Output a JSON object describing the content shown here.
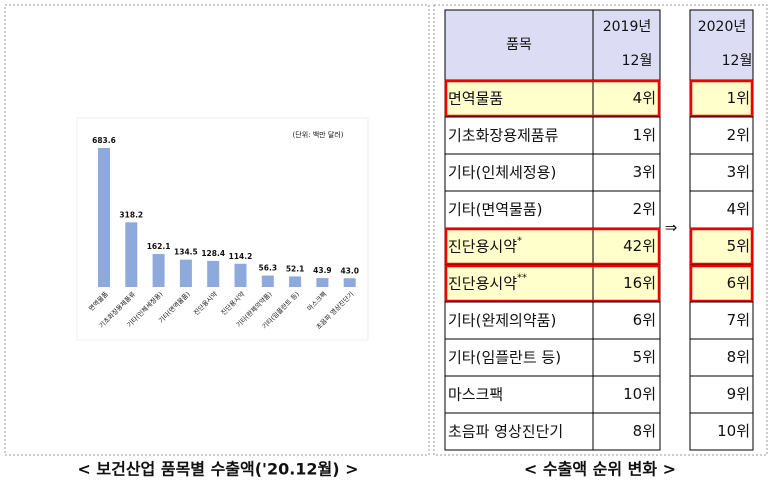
{
  "chart_data": {
    "type": "bar",
    "unit_note": "(단위: 백만 달러)",
    "categories": [
      "면역물품",
      "기초화장용제품류",
      "기타(인체세정용)",
      "기타(면역물품)",
      "진단용시약",
      "진단용시약",
      "기타(완제의약품)",
      "기타(임플란트 등)",
      "마스크팩",
      "초음파 영상진단기"
    ],
    "values": [
      683.6,
      318.2,
      162.1,
      134.5,
      128.4,
      114.2,
      56.3,
      52.1,
      43.9,
      43.0
    ],
    "value_labels": [
      "683.6",
      "318.2",
      "162.1",
      "134.5",
      "128.4",
      "114.2",
      "56.3",
      "52.1",
      "43.9",
      "43.0"
    ],
    "color": "#8ea9db"
  },
  "left_caption": "< 보건산업 품목별 수출액('20.12월) >",
  "right_caption": "< 수출액 순위 변화 >",
  "table": {
    "item_header": "품목",
    "year2019": "2019년",
    "month2019": "12월",
    "year2020": "2020년",
    "month2020": "12월",
    "arrow": "⇒",
    "rows": [
      {
        "item": "면역물품",
        "rank2019": "4위",
        "rank2020": "1위",
        "highlighted": true
      },
      {
        "item": "기초화장용제품류",
        "rank2019": "1위",
        "rank2020": "2위",
        "highlighted": false
      },
      {
        "item": "기타(인체세정용)",
        "rank2019": "3위",
        "rank2020": "3위",
        "highlighted": false
      },
      {
        "item": "기타(면역물품)",
        "rank2019": "2위",
        "rank2020": "4위",
        "highlighted": false
      },
      {
        "item": "진단용시약",
        "note": "*",
        "rank2019": "42위",
        "rank2020": "5위",
        "highlighted": true
      },
      {
        "item": "진단용시약",
        "note": "**",
        "rank2019": "16위",
        "rank2020": "6위",
        "highlighted": true
      },
      {
        "item": "기타(완제의약품)",
        "rank2019": "6위",
        "rank2020": "7위",
        "highlighted": false
      },
      {
        "item": "기타(임플란트 등)",
        "rank2019": "5위",
        "rank2020": "8위",
        "highlighted": false
      },
      {
        "item": "마스크팩",
        "rank2019": "10위",
        "rank2020": "9위",
        "highlighted": false
      },
      {
        "item": "초음파 영상진단기",
        "rank2019": "8위",
        "rank2020": "10위",
        "highlighted": false
      }
    ]
  }
}
